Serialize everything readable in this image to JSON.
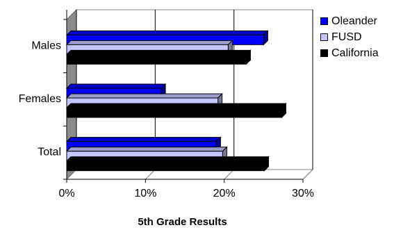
{
  "chart_data": {
    "type": "bar",
    "orientation": "horizontal",
    "categories": [
      "Males",
      "Females",
      "Total"
    ],
    "series": [
      {
        "name": "Oleander",
        "color": "#0000ff",
        "values": [
          25,
          12,
          19
        ]
      },
      {
        "name": "FUSD",
        "color": "#c4c4ff",
        "values": [
          20.5,
          19.2,
          19.8
        ]
      },
      {
        "name": "California",
        "color": "#000000",
        "values": [
          22.8,
          27.3,
          25.1
        ]
      }
    ],
    "xticks": [
      "0%",
      "10%",
      "20%",
      "30%"
    ],
    "xlim": [
      0,
      30
    ],
    "xlabel": "5th Grade Results",
    "ylabel": "",
    "title": "",
    "grid": true,
    "style": "3d",
    "legend_position": "right"
  }
}
